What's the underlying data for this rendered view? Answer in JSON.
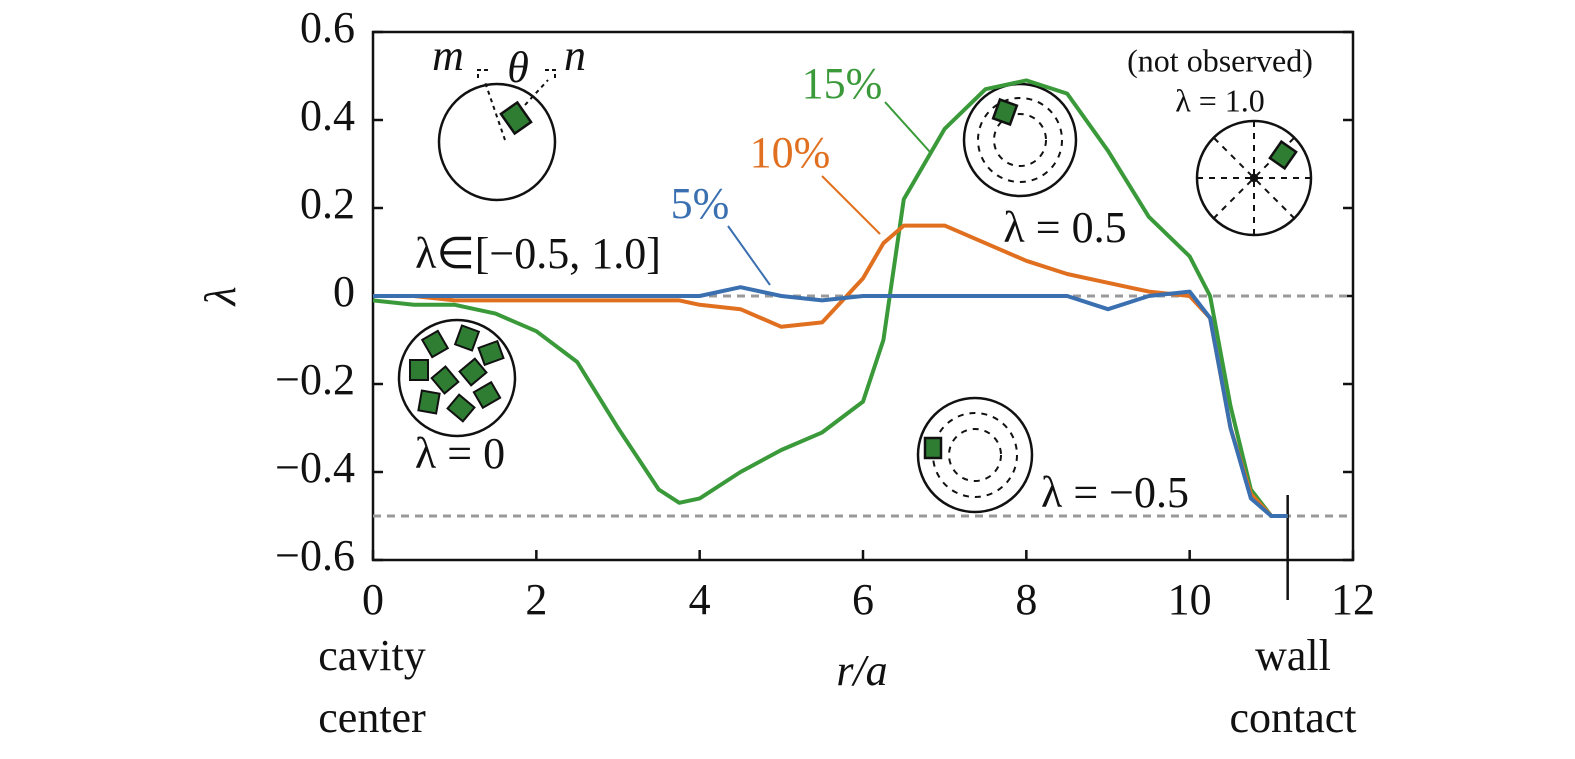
{
  "chart_data": {
    "type": "line",
    "x_label": "r/a",
    "y_label": "λ",
    "x": [
      0,
      0.5,
      1,
      1.5,
      2,
      2.5,
      3,
      3.5,
      3.75,
      4,
      4.5,
      5,
      5.5,
      6,
      6.25,
      6.5,
      7,
      7.5,
      8,
      8.5,
      9,
      9.5,
      10,
      10.25,
      10.5,
      10.75,
      11,
      11.2
    ],
    "series": [
      {
        "name": "15%",
        "color": "#3a9a3a",
        "values": [
          -0.01,
          -0.02,
          -0.02,
          -0.04,
          -0.08,
          -0.15,
          -0.3,
          -0.44,
          -0.47,
          -0.46,
          -0.4,
          -0.35,
          -0.31,
          -0.24,
          -0.1,
          0.22,
          0.38,
          0.47,
          0.49,
          0.46,
          0.33,
          0.18,
          0.09,
          0.0,
          -0.25,
          -0.44,
          -0.5,
          -0.5
        ]
      },
      {
        "name": "10%",
        "color": "#e07020",
        "values": [
          0,
          0,
          -0.01,
          -0.01,
          -0.01,
          -0.01,
          -0.01,
          -0.01,
          -0.01,
          -0.02,
          -0.03,
          -0.07,
          -0.06,
          0.04,
          0.12,
          0.16,
          0.16,
          0.12,
          0.08,
          0.05,
          0.03,
          0.01,
          0.0,
          -0.05,
          -0.3,
          -0.45,
          -0.5,
          -0.5
        ]
      },
      {
        "name": "5%",
        "color": "#3a6fb0",
        "values": [
          0,
          0,
          0,
          0,
          0,
          0,
          0,
          0,
          0,
          0,
          0.02,
          0,
          -0.01,
          0,
          0,
          0,
          0,
          0,
          0,
          0,
          -0.03,
          0,
          0.01,
          -0.05,
          -0.3,
          -0.46,
          -0.5,
          -0.5
        ]
      }
    ],
    "xlim": [
      0,
      12
    ],
    "ylim": [
      -0.6,
      0.6
    ],
    "xticks": [
      0,
      2,
      4,
      6,
      8,
      10,
      12
    ],
    "yticks": [
      {
        "value": -0.6,
        "label": "−0.6"
      },
      {
        "value": -0.4,
        "label": "−0.4"
      },
      {
        "value": -0.2,
        "label": "−0.2"
      },
      0,
      0.2,
      0.4,
      0.6
    ],
    "ref_lines": [
      0,
      -0.5
    ],
    "wall_x": 11.2,
    "annotations": [
      "m",
      "θ",
      "n",
      "(not observed)",
      "λ = 1.0",
      "λ∈[−0.5, 1.0]",
      "λ = 0",
      "λ = 0.5",
      "λ = −0.5",
      "cavity",
      "center",
      "wall",
      "contact"
    ]
  }
}
